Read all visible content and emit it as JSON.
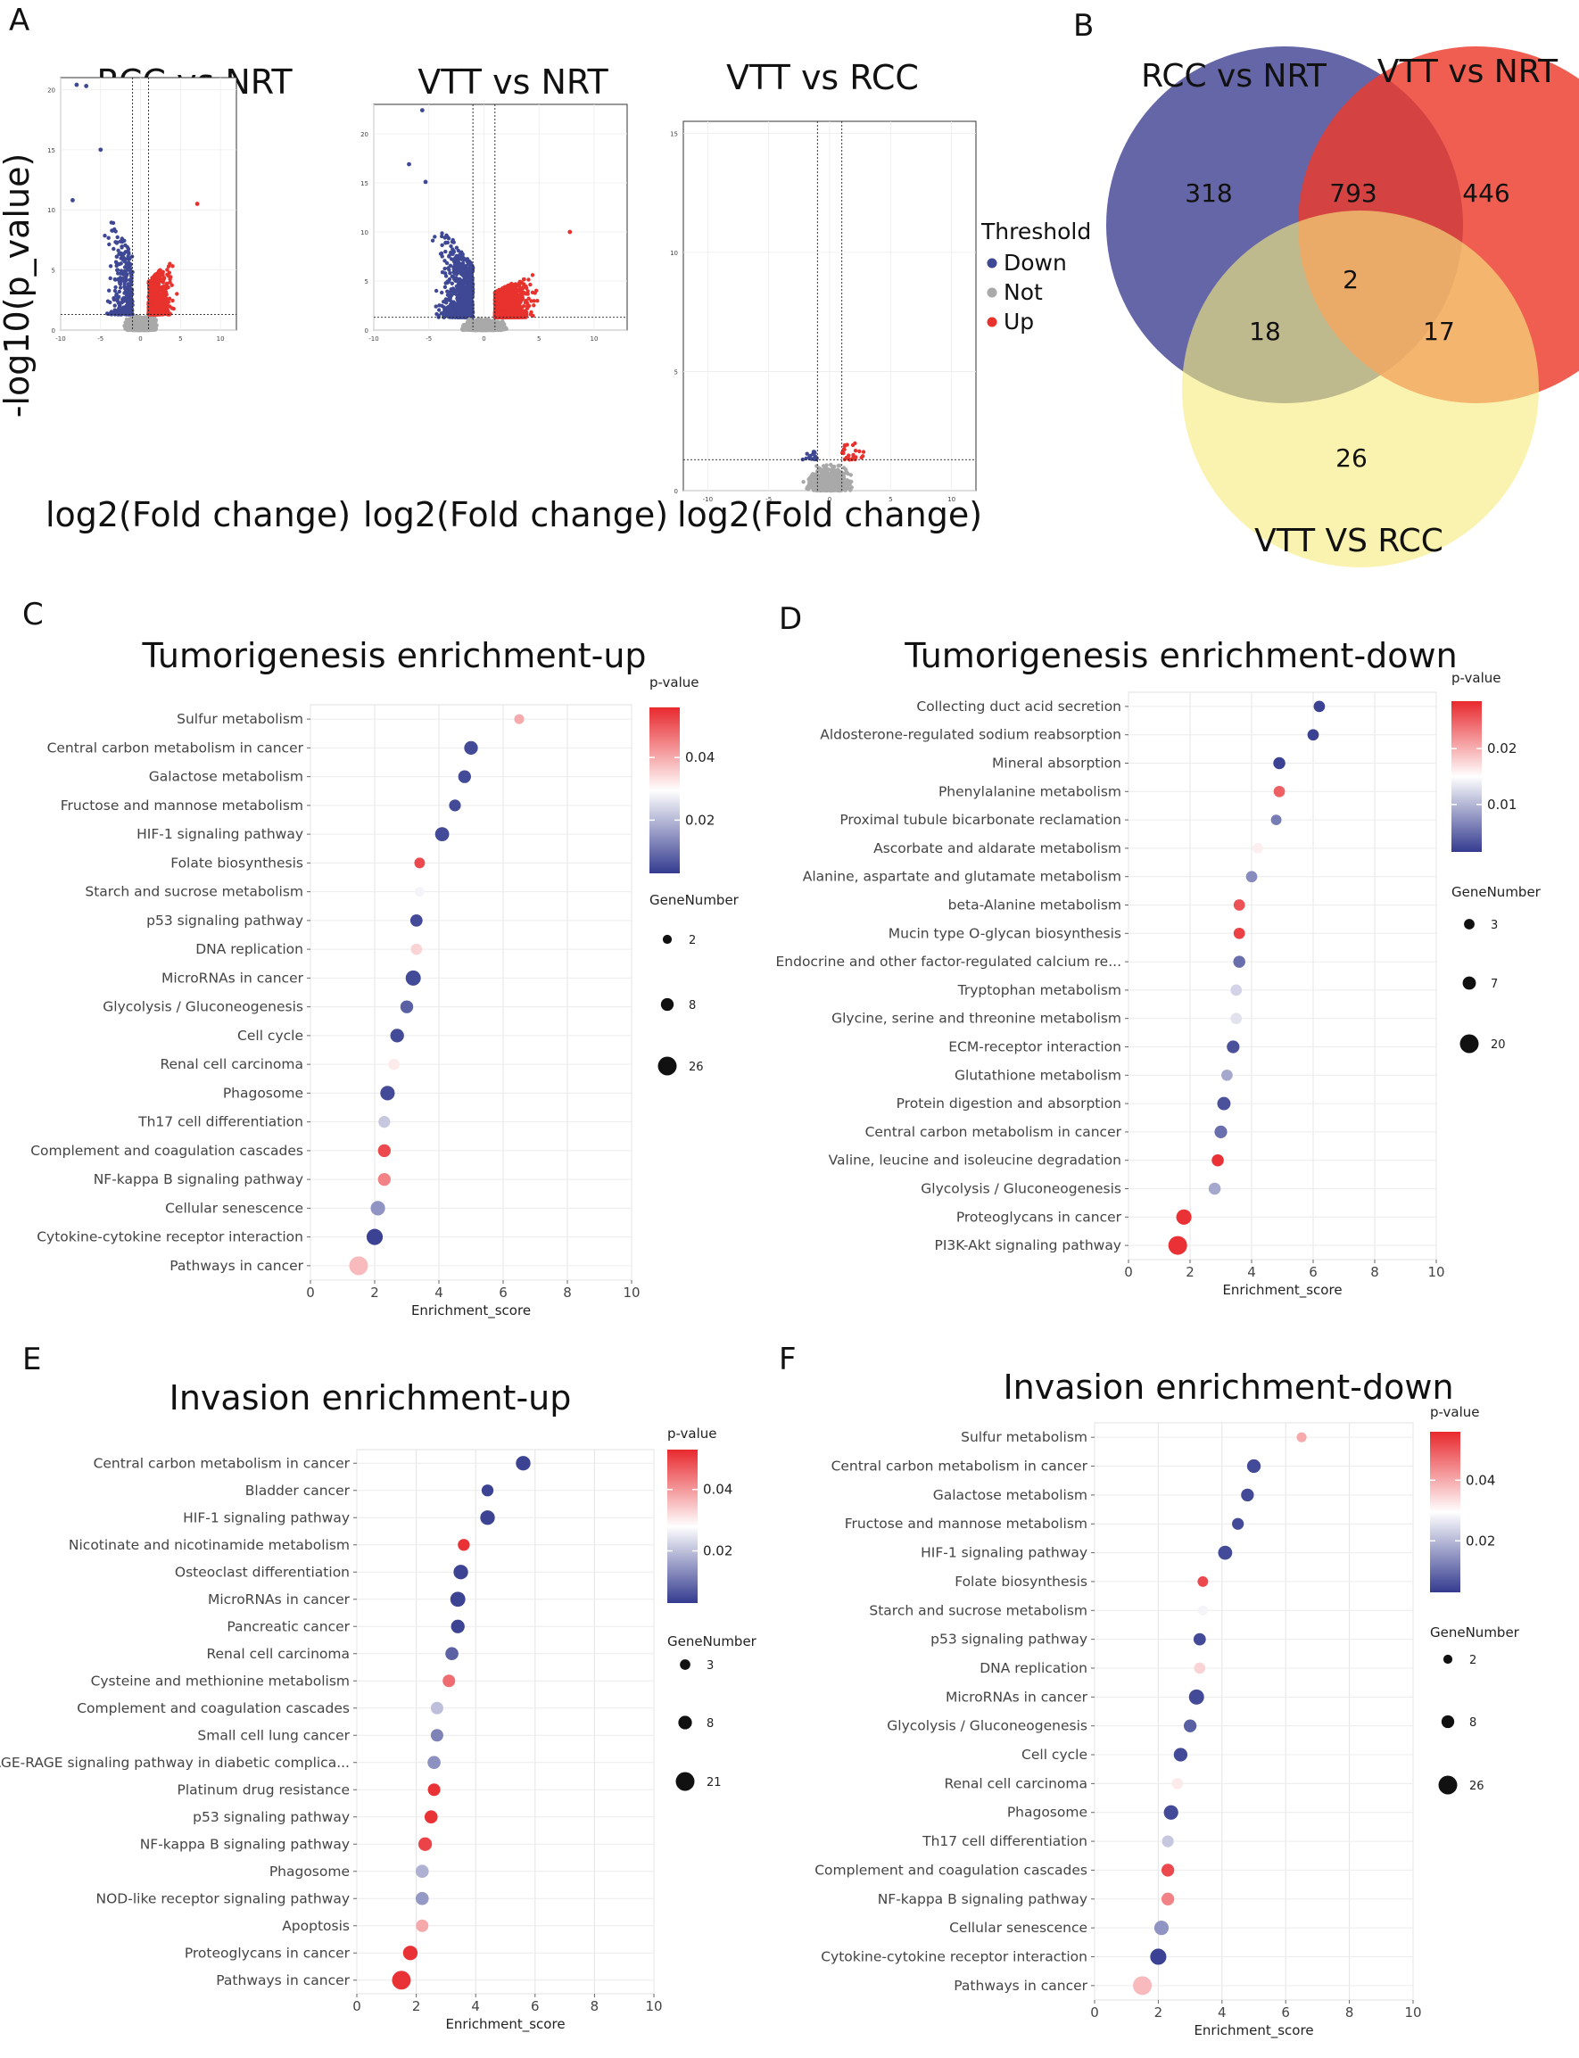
{
  "panels": {
    "A": "A",
    "B": "B",
    "C": "C",
    "D": "D",
    "E": "E",
    "F": "F"
  },
  "colors": {
    "down": "#3f4894",
    "not": "#a9a9a9",
    "up": "#e8322d",
    "venn_rcc_nrt": "#4a4b98",
    "venn_vtt_nrt": "#ed3b2c",
    "venn_vtt_rcc": "#f7ec7f",
    "pvalue_high": "#e8292e",
    "pvalue_mid": "#ffffff",
    "pvalue_low": "#343b8f"
  },
  "volcano_common": {
    "ylabel": "-log10(p_value)",
    "xlabel": "log2(Fold change)",
    "legend_title": "Threshold",
    "legend_items": [
      "Down",
      "Not",
      "Up"
    ]
  },
  "chart_data": [
    {
      "id": "volcano-rcc-nrt",
      "type": "scatter",
      "title": "RCC vs NRT",
      "xlabel": "log2(Fold change)",
      "ylabel": "-log10(p_value)",
      "xlim": [
        -10,
        12
      ],
      "ylim": [
        0,
        21
      ],
      "xticks": [
        -10,
        -5,
        0,
        5,
        10
      ],
      "yticks": [
        0,
        5,
        10,
        15,
        20
      ],
      "fold_cutoff": [
        -1,
        1
      ],
      "p_cutoff": 1.3,
      "series": [
        {
          "name": "Down",
          "approx_count": 331,
          "x_range": [
            -9,
            -1
          ],
          "y_range": [
            1.3,
            20.4
          ]
        },
        {
          "name": "Not",
          "approx_count": 4000,
          "x_range": [
            -6,
            7
          ],
          "y_range": [
            0,
            1.3
          ]
        },
        {
          "name": "Up",
          "approx_count": 795,
          "x_range": [
            1,
            8
          ],
          "y_range": [
            1.3,
            10.5
          ]
        }
      ],
      "highlight_points": [
        [
          -8,
          20.4
        ],
        [
          -6.8,
          20.3
        ],
        [
          -5,
          15.0
        ],
        [
          -8.5,
          10.8
        ],
        [
          7.1,
          10.5
        ]
      ]
    },
    {
      "id": "volcano-vtt-nrt",
      "type": "scatter",
      "title": "VTT vs NRT",
      "xlabel": "log2(Fold change)",
      "ylabel": "-log10(p_value)",
      "xlim": [
        -10,
        13
      ],
      "ylim": [
        0,
        23
      ],
      "xticks": [
        -10,
        -5,
        0,
        5,
        10
      ],
      "yticks": [
        0,
        5,
        10,
        15,
        20
      ],
      "fold_cutoff": [
        -1,
        1
      ],
      "p_cutoff": 1.3,
      "series": [
        {
          "name": "Down",
          "approx_count": 811,
          "x_range": [
            -9,
            -1
          ],
          "y_range": [
            1.3,
            22.4
          ]
        },
        {
          "name": "Not",
          "approx_count": 4000,
          "x_range": [
            -6,
            8
          ],
          "y_range": [
            0,
            1.3
          ]
        },
        {
          "name": "Up",
          "approx_count": 1258,
          "x_range": [
            1,
            9
          ],
          "y_range": [
            1.3,
            10
          ]
        }
      ],
      "highlight_points": [
        [
          -5.6,
          22.4
        ],
        [
          -6.8,
          16.9
        ],
        [
          -5.3,
          15.1
        ],
        [
          7.8,
          10.0
        ]
      ]
    },
    {
      "id": "volcano-vtt-rcc",
      "type": "scatter",
      "title": "VTT vs RCC",
      "xlabel": "log2(Fold change)",
      "ylabel": "-log10(p_value)",
      "xlim": [
        -12,
        12
      ],
      "ylim": [
        0,
        15.5
      ],
      "xticks": [
        -10,
        -5,
        0,
        5,
        10
      ],
      "yticks": [
        0,
        5,
        10,
        15
      ],
      "fold_cutoff": [
        -1,
        1
      ],
      "p_cutoff": 1.3,
      "series": [
        {
          "name": "Down",
          "approx_count": 20,
          "x_range": [
            -5,
            -1
          ],
          "y_range": [
            1.3,
            2.6
          ]
        },
        {
          "name": "Not",
          "approx_count": 1000,
          "x_range": [
            -5,
            5
          ],
          "y_range": [
            0,
            1.3
          ]
        },
        {
          "name": "Up",
          "approx_count": 25,
          "x_range": [
            1,
            6
          ],
          "y_range": [
            1.3,
            3.2
          ]
        }
      ]
    },
    {
      "id": "venn",
      "type": "venn",
      "sets": [
        "RCC vs NRT",
        "VTT vs NRT",
        "VTT VS RCC"
      ],
      "regions": {
        "RCC_only": 318,
        "VTT_NRT_only": 446,
        "VTT_RCC_only": 26,
        "RCC_and_VTT_NRT": 793,
        "RCC_and_VTT_RCC": 18,
        "VTT_NRT_and_VTT_RCC": 17,
        "all_three": 2
      }
    },
    {
      "id": "enrich-C",
      "type": "scatter",
      "title": "Tumorigenesis enrichment-up",
      "xlabel": "Enrichment_score",
      "xlim": [
        0,
        10
      ],
      "xticks": [
        0,
        2,
        4,
        6,
        8,
        10
      ],
      "legend_pvalue_title": "p-value",
      "legend_pvalue_ticks": [
        "0.04",
        "0.02"
      ],
      "legend_pvalue_tick_values": [
        0.04,
        0.02
      ],
      "legend_pvalue_range": [
        0.003,
        0.056
      ],
      "legend_size_title": "GeneNumber",
      "legend_size_labels": [
        "2",
        "8",
        "26"
      ],
      "legend_size_values": [
        2,
        8,
        26
      ],
      "categories": [
        "Sulfur metabolism",
        "Central carbon metabolism in cancer",
        "Galactose metabolism",
        "Fructose and mannose metabolism",
        "HIF-1 signaling pathway",
        "Folate biosynthesis",
        "Starch and sucrose metabolism",
        "p53 signaling pathway",
        "DNA replication",
        "MicroRNAs in cancer",
        "Glycolysis / Gluconeogenesis",
        "Cell cycle",
        "Renal cell carcinoma",
        "Phagosome",
        "Th17 cell differentiation",
        "Complement and coagulation cascades",
        "NF-kappa B signaling pathway",
        "Cellular senescence",
        "Cytokine-cytokine receptor interaction",
        "Pathways in cancer"
      ],
      "x": [
        6.5,
        5.0,
        4.8,
        4.5,
        4.1,
        3.4,
        3.4,
        3.3,
        3.3,
        3.2,
        3.0,
        2.7,
        2.6,
        2.4,
        2.3,
        2.3,
        2.3,
        2.1,
        2.0,
        1.5
      ],
      "pvalues": [
        0.04,
        0.005,
        0.005,
        0.005,
        0.005,
        0.052,
        0.028,
        0.005,
        0.035,
        0.005,
        0.008,
        0.005,
        0.032,
        0.005,
        0.022,
        0.052,
        0.045,
        0.015,
        0.004,
        0.038
      ],
      "gene_number": [
        3,
        10,
        8,
        6,
        11,
        4,
        3,
        7,
        5,
        14,
        8,
        10,
        5,
        12,
        6,
        8,
        8,
        12,
        17,
        26
      ]
    },
    {
      "id": "enrich-D",
      "type": "scatter",
      "title": "Tumorigenesis enrichment-down",
      "xlabel": "Enrichment_score",
      "xlim": [
        0,
        10
      ],
      "xticks": [
        0,
        2,
        4,
        6,
        8,
        10
      ],
      "legend_pvalue_title": "p-value",
      "legend_pvalue_ticks": [
        "0.02",
        "0.01"
      ],
      "legend_pvalue_tick_values": [
        0.02,
        0.01
      ],
      "legend_pvalue_range": [
        0.0015,
        0.0285
      ],
      "legend_size_title": "GeneNumber",
      "legend_size_labels": [
        "3",
        "7",
        "20"
      ],
      "legend_size_values": [
        3,
        7,
        20
      ],
      "categories": [
        "Collecting duct acid secretion",
        "Aldosterone-regulated sodium reabsorption",
        "Mineral absorption",
        "Phenylalanine metabolism",
        "Proximal tubule bicarbonate reclamation",
        "Ascorbate and aldarate metabolism",
        "Alanine, aspartate and glutamate metabolism",
        "beta-Alanine metabolism",
        "Mucin type O-glycan biosynthesis",
        "Endocrine and other factor-regulated calcium re...",
        "Tryptophan metabolism",
        "Glycine, serine and threonine metabolism",
        "ECM-receptor interaction",
        "Glutathione metabolism",
        "Protein digestion and absorption",
        "Central carbon metabolism in cancer",
        "Valine, leucine and isoleucine degradation",
        "Glycolysis / Gluconeogenesis",
        "Proteoglycans in cancer",
        "PI3K-Akt signaling pathway"
      ],
      "x": [
        6.2,
        6.0,
        4.9,
        4.9,
        4.8,
        4.2,
        4.0,
        3.6,
        3.6,
        3.6,
        3.5,
        3.5,
        3.4,
        3.2,
        3.1,
        3.0,
        2.9,
        2.8,
        1.8,
        1.6
      ],
      "pvalues": [
        0.002,
        0.002,
        0.002,
        0.025,
        0.006,
        0.016,
        0.007,
        0.026,
        0.027,
        0.005,
        0.012,
        0.013,
        0.003,
        0.009,
        0.003,
        0.005,
        0.028,
        0.009,
        0.028,
        0.028
      ],
      "gene_number": [
        4,
        4,
        5,
        4,
        3,
        3,
        4,
        4,
        4,
        5,
        4,
        4,
        6,
        4,
        7,
        6,
        5,
        5,
        11,
        20
      ]
    },
    {
      "id": "enrich-E",
      "type": "scatter",
      "title": "Invasion enrichment-up",
      "xlabel": "Enrichment_score",
      "xlim": [
        0,
        10
      ],
      "xticks": [
        0,
        2,
        4,
        6,
        8,
        10
      ],
      "legend_pvalue_title": "p-value",
      "legend_pvalue_ticks": [
        "0.04",
        "0.02"
      ],
      "legend_pvalue_tick_values": [
        0.04,
        0.02
      ],
      "legend_pvalue_range": [
        0.003,
        0.053
      ],
      "legend_size_title": "GeneNumber",
      "legend_size_labels": [
        "3",
        "8",
        "21"
      ],
      "legend_size_values": [
        3,
        8,
        21
      ],
      "categories": [
        "Central carbon metabolism in cancer",
        "Bladder cancer",
        "HIF-1 signaling pathway",
        "Nicotinate and nicotinamide metabolism",
        "Osteoclast differentiation",
        "MicroRNAs in cancer",
        "Pancreatic cancer",
        "Renal cell carcinoma",
        "Cysteine and methionine metabolism",
        "Complement and coagulation cascades",
        "Small cell lung cancer",
        "AGE-RAGE signaling pathway in diabetic complica...",
        "Platinum drug resistance",
        "p53 signaling pathway",
        "NF-kappa B signaling pathway",
        "Phagosome",
        "NOD-like receptor signaling pathway",
        "Apoptosis",
        "Proteoglycans in cancer",
        "Pathways in cancer"
      ],
      "x": [
        5.6,
        4.4,
        4.4,
        3.6,
        3.5,
        3.4,
        3.4,
        3.2,
        3.1,
        2.7,
        2.7,
        2.6,
        2.6,
        2.5,
        2.3,
        2.2,
        2.2,
        2.2,
        1.8,
        1.5
      ],
      "pvalues": [
        0.004,
        0.004,
        0.004,
        0.052,
        0.004,
        0.004,
        0.004,
        0.008,
        0.045,
        0.02,
        0.012,
        0.014,
        0.052,
        0.052,
        0.05,
        0.018,
        0.015,
        0.038,
        0.052,
        0.052
      ],
      "gene_number": [
        10,
        5,
        10,
        5,
        10,
        11,
        8,
        7,
        6,
        6,
        6,
        7,
        6,
        7,
        8,
        7,
        7,
        6,
        10,
        21
      ]
    },
    {
      "id": "enrich-F",
      "type": "scatter",
      "title": "Invasion enrichment-down",
      "xlabel": "Enrichment_score",
      "xlim": [
        0,
        10
      ],
      "xticks": [
        0,
        2,
        4,
        6,
        8,
        10
      ],
      "legend_pvalue_title": "p-value",
      "legend_pvalue_ticks": [
        "0.04",
        "0.02"
      ],
      "legend_pvalue_tick_values": [
        0.04,
        0.02
      ],
      "legend_pvalue_range": [
        0.003,
        0.056
      ],
      "legend_size_title": "GeneNumber",
      "legend_size_labels": [
        "2",
        "8",
        "26"
      ],
      "legend_size_values": [
        2,
        8,
        26
      ],
      "categories": [
        "Sulfur metabolism",
        "Central carbon metabolism in cancer",
        "Galactose metabolism",
        "Fructose and mannose metabolism",
        "HIF-1 signaling pathway",
        "Folate biosynthesis",
        "Starch and sucrose metabolism",
        "p53 signaling pathway",
        "DNA replication",
        "MicroRNAs in cancer",
        "Glycolysis / Gluconeogenesis",
        "Cell cycle",
        "Renal cell carcinoma",
        "Phagosome",
        "Th17 cell differentiation",
        "Complement and coagulation cascades",
        "NF-kappa B signaling pathway",
        "Cellular senescence",
        "Cytokine-cytokine receptor interaction",
        "Pathways in cancer"
      ],
      "x": [
        6.5,
        5.0,
        4.8,
        4.5,
        4.1,
        3.4,
        3.4,
        3.3,
        3.3,
        3.2,
        3.0,
        2.7,
        2.6,
        2.4,
        2.3,
        2.3,
        2.3,
        2.1,
        2.0,
        1.5
      ],
      "pvalues": [
        0.04,
        0.005,
        0.005,
        0.005,
        0.005,
        0.052,
        0.028,
        0.005,
        0.035,
        0.005,
        0.008,
        0.005,
        0.032,
        0.005,
        0.022,
        0.052,
        0.045,
        0.015,
        0.004,
        0.038
      ],
      "gene_number": [
        3,
        10,
        8,
        6,
        11,
        4,
        3,
        7,
        5,
        14,
        8,
        10,
        5,
        12,
        6,
        8,
        8,
        12,
        17,
        26
      ]
    }
  ]
}
